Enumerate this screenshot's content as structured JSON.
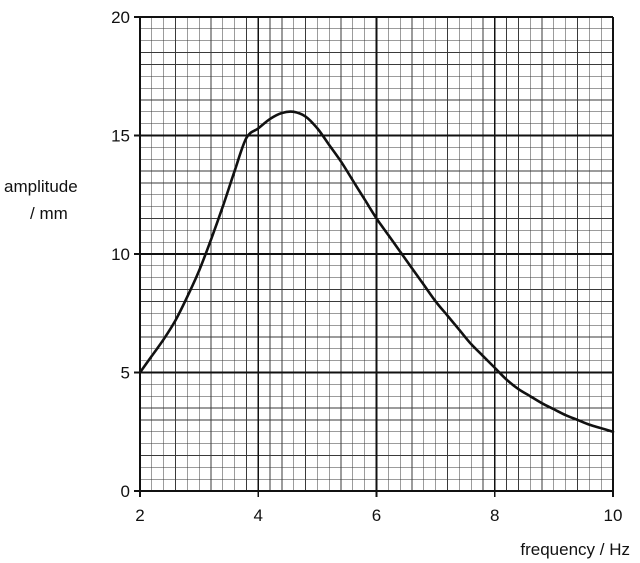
{
  "chart_data": {
    "type": "line",
    "title": "",
    "xlabel": "frequency / Hz",
    "ylabel_line1": "amplitude",
    "ylabel_line2": "/ mm",
    "xlim": [
      2,
      10
    ],
    "ylim": [
      0,
      20
    ],
    "x_ticks": [
      2,
      4,
      6,
      8,
      10
    ],
    "y_ticks": [
      0,
      5,
      10,
      15,
      20
    ],
    "x_minor_step": 0.2,
    "y_minor_step": 0.5,
    "grid": true,
    "series": [
      {
        "x": [
          2.0,
          2.2,
          2.4,
          2.6,
          2.8,
          3.0,
          3.2,
          3.4,
          3.6,
          3.8,
          4.0,
          4.2,
          4.4,
          4.6,
          4.8,
          5.0,
          5.2,
          5.4,
          5.6,
          5.8,
          6.0,
          6.2,
          6.4,
          6.6,
          6.8,
          7.0,
          7.2,
          7.4,
          7.6,
          7.8,
          8.0,
          8.2,
          8.4,
          8.6,
          8.8,
          9.0,
          9.2,
          9.4,
          9.6,
          9.8,
          10.0
        ],
        "y": [
          5.0,
          5.7,
          6.4,
          7.2,
          8.2,
          9.3,
          10.6,
          12.0,
          13.5,
          14.9,
          15.3,
          15.7,
          15.95,
          16.0,
          15.8,
          15.3,
          14.6,
          13.9,
          13.1,
          12.3,
          11.5,
          10.8,
          10.1,
          9.4,
          8.7,
          8.0,
          7.4,
          6.8,
          6.2,
          5.7,
          5.2,
          4.7,
          4.3,
          4.0,
          3.7,
          3.45,
          3.2,
          3.0,
          2.8,
          2.65,
          2.5
        ]
      }
    ]
  }
}
